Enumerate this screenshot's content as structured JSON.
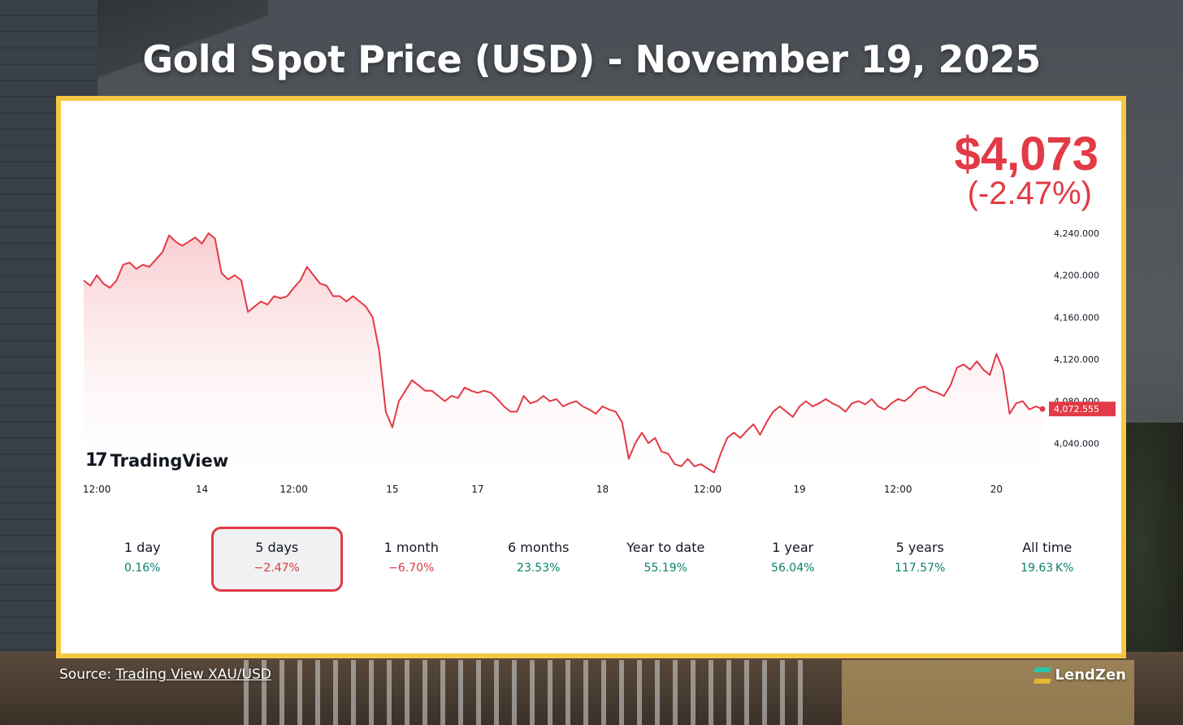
{
  "headline": "Gold Spot Price (USD) - November 19, 2025",
  "price": {
    "value": "$4,073",
    "change": "(-2.47%)"
  },
  "logo": {
    "text": "TradingView",
    "mark": "TV-logo-icon"
  },
  "periods": [
    {
      "label": "1 day",
      "pct": "0.16%",
      "direction": "up"
    },
    {
      "label": "5 days",
      "pct": "−2.47%",
      "direction": "down",
      "active": true
    },
    {
      "label": "1 month",
      "pct": "−6.70%",
      "direction": "down"
    },
    {
      "label": "6 months",
      "pct": "23.53%",
      "direction": "up"
    },
    {
      "label": "Year to date",
      "pct": "55.19%",
      "direction": "up"
    },
    {
      "label": "1 year",
      "pct": "56.04%",
      "direction": "up"
    },
    {
      "label": "5 years",
      "pct": "117.57%",
      "direction": "up"
    },
    {
      "label": "All time",
      "pct": "19.63 K%",
      "direction": "up"
    }
  ],
  "footer": {
    "source_prefix": "Source: ",
    "source_link": "Trading View XAU/USD",
    "brand": "LendZen"
  },
  "colors": {
    "line": "#e23a46",
    "fill_top": "#f9c9cd",
    "positive": "#087f6a",
    "negative": "#d63a44",
    "frame": "#f5c842"
  },
  "chart_data": {
    "type": "area",
    "title": "",
    "xlabel": "",
    "ylabel": "",
    "ylim": [
      4010,
      4250
    ],
    "y_ticks": [
      "4,240.000",
      "4,200.000",
      "4,160.000",
      "4,120.000",
      "4,080.000",
      "4,040.000"
    ],
    "y_tick_values": [
      4240,
      4200,
      4160,
      4120,
      4080,
      4040
    ],
    "x_tick_labels": [
      "12:00",
      "14",
      "12:00",
      "15",
      "17",
      "18",
      "12:00",
      "19",
      "12:00",
      "20"
    ],
    "x_tick_index": [
      2,
      18,
      32,
      47,
      60,
      79,
      95,
      109,
      124,
      139
    ],
    "last_price_label": "4,072.555",
    "last_price": 4072.555,
    "series": [
      {
        "values": [
          4195,
          4190,
          4200,
          4192,
          4188,
          4195,
          4210,
          4212,
          4206,
          4210,
          4208,
          4215,
          4222,
          4238,
          4232,
          4228,
          4232,
          4236,
          4230,
          4240,
          4235,
          4202,
          4196,
          4200,
          4195,
          4165,
          4170,
          4175,
          4172,
          4180,
          4178,
          4180,
          4188,
          4195,
          4208,
          4200,
          4192,
          4190,
          4180,
          4180,
          4175,
          4180,
          4175,
          4170,
          4160,
          4128,
          4070,
          4055,
          4080,
          4090,
          4100,
          4095,
          4090,
          4090,
          4085,
          4080,
          4085,
          4083,
          4093,
          4090,
          4088,
          4090,
          4088,
          4082,
          4075,
          4070,
          4070,
          4085,
          4078,
          4080,
          4085,
          4080,
          4082,
          4075,
          4078,
          4080,
          4075,
          4072,
          4068,
          4075,
          4072,
          4070,
          4060,
          4025,
          4040,
          4050,
          4040,
          4045,
          4032,
          4030,
          4020,
          4018,
          4025,
          4018,
          4020,
          4016,
          4012,
          4030,
          4045,
          4050,
          4045,
          4052,
          4058,
          4048,
          4060,
          4070,
          4075,
          4070,
          4065,
          4075,
          4080,
          4075,
          4078,
          4082,
          4078,
          4075,
          4070,
          4078,
          4080,
          4077,
          4082,
          4075,
          4072,
          4078,
          4082,
          4080,
          4085,
          4092,
          4094,
          4090,
          4088,
          4085,
          4095,
          4112,
          4115,
          4110,
          4118,
          4110,
          4105,
          4125,
          4110,
          4068,
          4078,
          4080,
          4072,
          4075,
          4072.555
        ]
      }
    ]
  }
}
